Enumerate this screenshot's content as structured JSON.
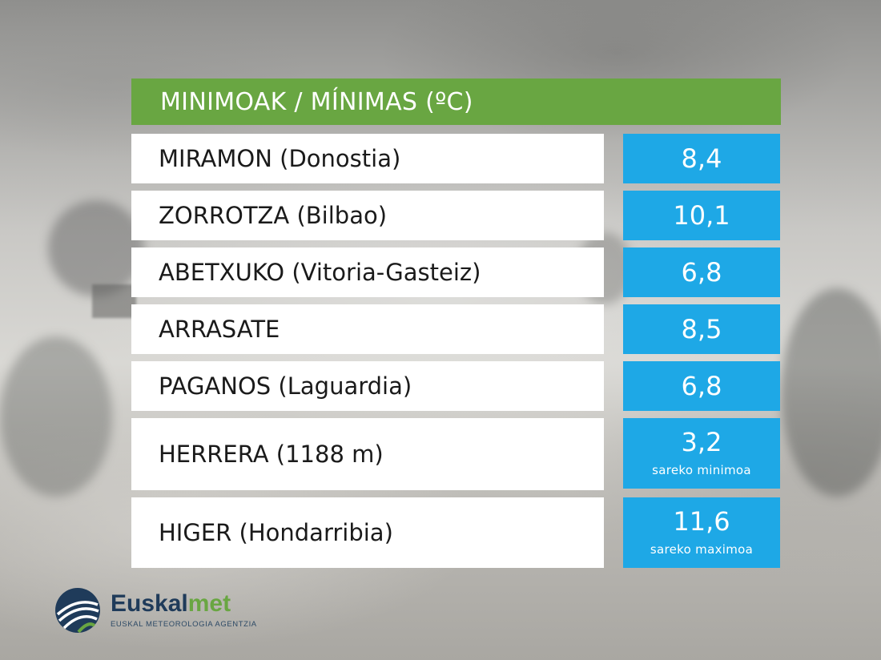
{
  "header": {
    "title": "MINIMOAK / MÍNIMAS (ºC)"
  },
  "rows": [
    {
      "station": "MIRAMON (Donostia)",
      "value": "8,4",
      "note": ""
    },
    {
      "station": "ZORROTZA (Bilbao)",
      "value": "10,1",
      "note": ""
    },
    {
      "station": "ABETXUKO (Vitoria-Gasteiz)",
      "value": "6,8",
      "note": ""
    },
    {
      "station": "ARRASATE",
      "value": "8,5",
      "note": ""
    },
    {
      "station": "PAGANOS (Laguardia)",
      "value": "6,8",
      "note": ""
    },
    {
      "station": "HERRERA (1188 m)",
      "value": "3,2",
      "note": "sareko minimoa"
    },
    {
      "station": "HIGER (Hondarribia)",
      "value": "11,6",
      "note": "sareko maximoa"
    }
  ],
  "logo": {
    "name_main": "Euskal",
    "name_accent": "met",
    "subtitle": "EUSKAL METEOROLOGIA AGENTZIA",
    "icon": "euskalmet-logo-icon"
  },
  "colors": {
    "header_green": "#69a642",
    "value_blue": "#1ea8e6",
    "name_bg": "#ffffff",
    "logo_navy": "#1f3b5a"
  }
}
